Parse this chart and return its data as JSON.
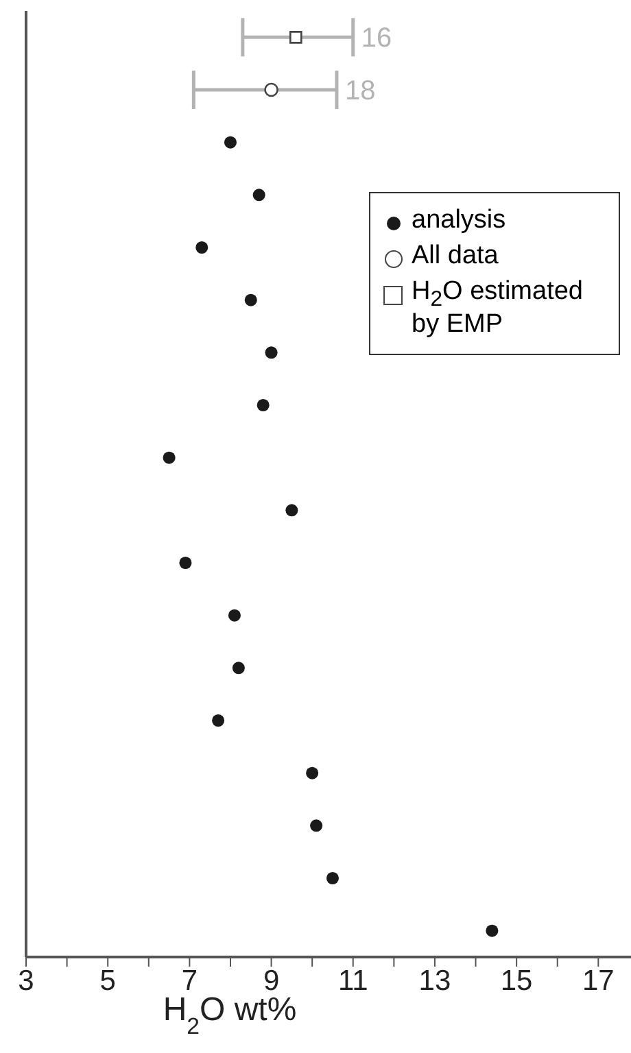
{
  "chart_data": {
    "type": "scatter",
    "orientation": "horizontal",
    "categories": [
      null,
      null,
      null,
      null,
      null,
      null,
      null,
      null,
      null,
      null,
      null,
      null,
      null,
      null,
      null,
      null,
      null,
      null
    ],
    "xlabel": "H$_{2}$O wt%",
    "xlim": [
      3,
      17.8
    ],
    "xticks": [
      3,
      {
        "value": 4,
        "label": null
      },
      5,
      {
        "value": 6,
        "label": null
      },
      7,
      {
        "value": 8,
        "label": null
      },
      9,
      {
        "value": 10,
        "label": null
      },
      11,
      {
        "value": 12,
        "label": null
      },
      13,
      {
        "value": 14,
        "label": null
      },
      15,
      {
        "value": 16,
        "label": null
      },
      17
    ],
    "tick_labels": "x",
    "grid": false,
    "legend": "top right",
    "series": [
      {
        "name": "analysis",
        "marker": "circle",
        "color": "#1a1a1a",
        "values": [
          null,
          null,
          8.0,
          8.7,
          7.3,
          8.5,
          9.0,
          8.8,
          6.5,
          9.5,
          6.9,
          8.1,
          8.2,
          7.7,
          10.0,
          10.1,
          10.5,
          14.4
        ]
      },
      {
        "name": "All data",
        "marker": "circle",
        "color": "#444444",
        "values": [
          null,
          9.0,
          null,
          null,
          null,
          null,
          null,
          null,
          null,
          null,
          null,
          null,
          null,
          null,
          null,
          null,
          null,
          null
        ],
        "errors": [
          null,
          [
            7.1,
            10.6
          ],
          null,
          null,
          null,
          null,
          null,
          null,
          null,
          null,
          null,
          null,
          null,
          null,
          null,
          null,
          null,
          null
        ]
      },
      {
        "name": "H$_{2}$O estimated by EMP",
        "marker": "square",
        "color": "#444444",
        "values": [
          9.6,
          null,
          null,
          null,
          null,
          null,
          null,
          null,
          null,
          null,
          null,
          null,
          null,
          null,
          null,
          null,
          null,
          null
        ],
        "errors": [
          [
            8.3,
            11.0
          ],
          null,
          null,
          null,
          null,
          null,
          null,
          null,
          null,
          null,
          null,
          null,
          null,
          null,
          null,
          null,
          null,
          null
        ]
      }
    ],
    "annotations": [
      "18",
      "16"
    ]
  }
}
